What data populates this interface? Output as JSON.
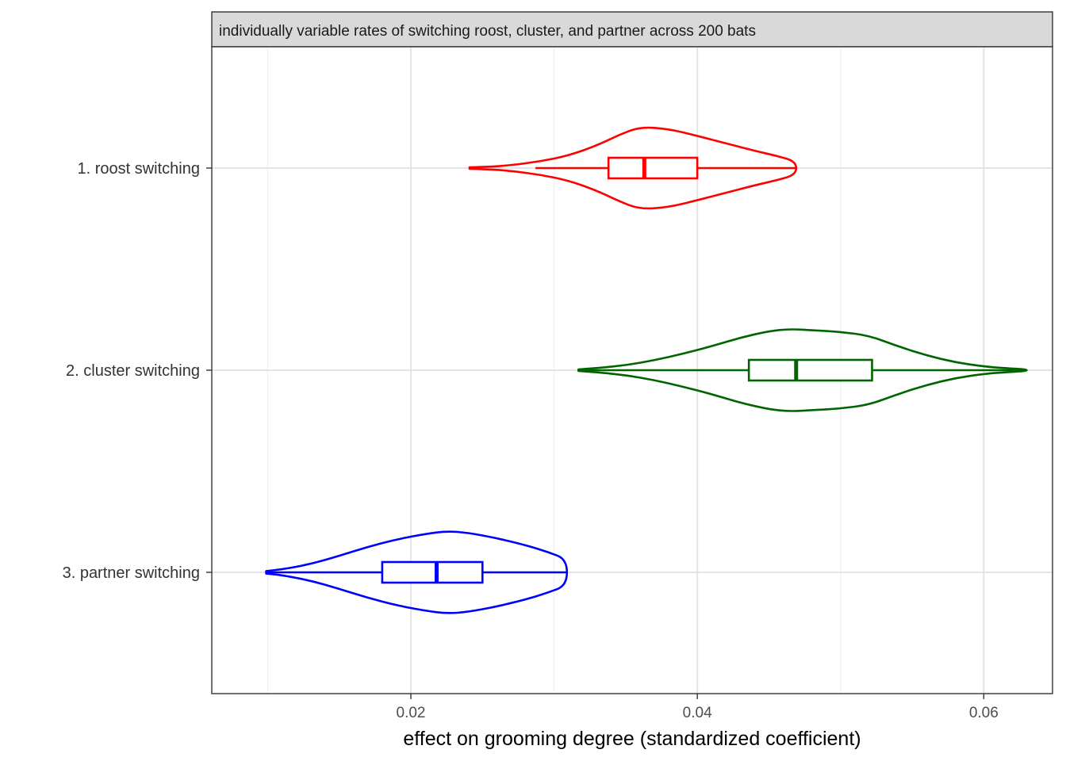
{
  "chart_data": {
    "type": "violin",
    "facet_label": "individually variable rates of switching roost, cluster, and partner across 200 bats",
    "xlabel": "effect on grooming degree (standardized coefficient)",
    "ylabel": "",
    "xlim": [
      0.0061,
      0.0648
    ],
    "x_major_ticks": [
      0.02,
      0.04,
      0.06
    ],
    "x_major_tick_labels": [
      "0.02",
      "0.04",
      "0.06"
    ],
    "x_minor_ticks": [
      0.01,
      0.03,
      0.05
    ],
    "grid": true,
    "legend": "none",
    "categories": [
      "1. roost switching",
      "2. cluster switching",
      "3. partner switching"
    ],
    "series": [
      {
        "category": "1. roost switching",
        "color": "#ff0000",
        "min": 0.0241,
        "max": 0.0469,
        "box": {
          "whisker_low": 0.0287,
          "q1": 0.0338,
          "median": 0.0363,
          "q3": 0.04,
          "whisker_high": 0.0469
        },
        "density_profile": [
          [
            0.0241,
            0.02
          ],
          [
            0.0255,
            0.03
          ],
          [
            0.027,
            0.07
          ],
          [
            0.029,
            0.16
          ],
          [
            0.031,
            0.3
          ],
          [
            0.033,
            0.55
          ],
          [
            0.0345,
            0.8
          ],
          [
            0.036,
            1.0
          ],
          [
            0.038,
            0.95
          ],
          [
            0.04,
            0.78
          ],
          [
            0.042,
            0.6
          ],
          [
            0.044,
            0.42
          ],
          [
            0.0455,
            0.3
          ],
          [
            0.0469,
            0.16
          ]
        ]
      },
      {
        "category": "2. cluster switching",
        "color": "#006400",
        "min": 0.0317,
        "max": 0.063,
        "box": {
          "whisker_low": 0.0317,
          "q1": 0.0436,
          "median": 0.0469,
          "q3": 0.0522,
          "whisker_high": 0.063
        },
        "density_profile": [
          [
            0.0317,
            0.02
          ],
          [
            0.033,
            0.05
          ],
          [
            0.035,
            0.12
          ],
          [
            0.037,
            0.24
          ],
          [
            0.039,
            0.4
          ],
          [
            0.041,
            0.58
          ],
          [
            0.043,
            0.79
          ],
          [
            0.045,
            0.95
          ],
          [
            0.0465,
            1.0
          ],
          [
            0.048,
            0.97
          ],
          [
            0.05,
            0.93
          ],
          [
            0.052,
            0.84
          ],
          [
            0.054,
            0.58
          ],
          [
            0.056,
            0.36
          ],
          [
            0.058,
            0.19
          ],
          [
            0.06,
            0.09
          ],
          [
            0.0615,
            0.05
          ],
          [
            0.063,
            0.02
          ]
        ]
      },
      {
        "category": "3. partner switching",
        "color": "#0000ff",
        "min": 0.0099,
        "max": 0.0309,
        "box": {
          "whisker_low": 0.0099,
          "q1": 0.018,
          "median": 0.0218,
          "q3": 0.025,
          "whisker_high": 0.0309
        },
        "density_profile": [
          [
            0.0099,
            0.03
          ],
          [
            0.011,
            0.07
          ],
          [
            0.013,
            0.2
          ],
          [
            0.015,
            0.4
          ],
          [
            0.017,
            0.62
          ],
          [
            0.019,
            0.8
          ],
          [
            0.021,
            0.93
          ],
          [
            0.0225,
            1.0
          ],
          [
            0.024,
            0.96
          ],
          [
            0.026,
            0.83
          ],
          [
            0.028,
            0.66
          ],
          [
            0.0295,
            0.5
          ],
          [
            0.0309,
            0.32
          ]
        ]
      }
    ]
  }
}
